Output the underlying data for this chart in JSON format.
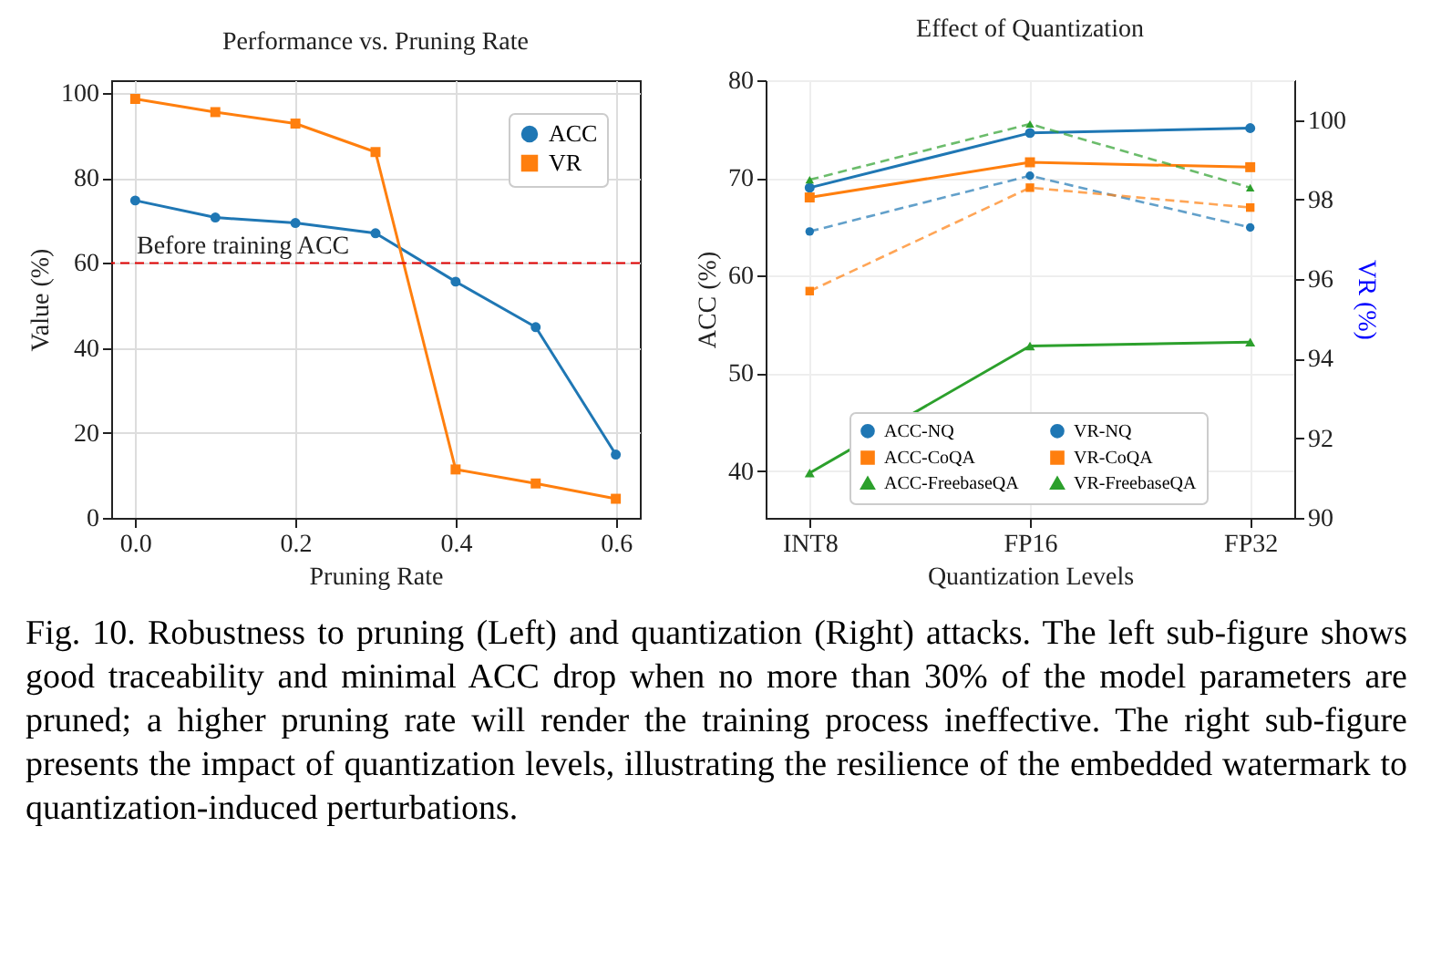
{
  "chart_data": [
    {
      "type": "line",
      "title": "Performance vs. Pruning Rate",
      "xlabel": "Pruning Rate",
      "ylabel": "Value (%)",
      "x": [
        0,
        0.1,
        0.2,
        0.3,
        0.4,
        0.5,
        0.6
      ],
      "series": [
        {
          "name": "ACC",
          "color": "#1f77b4",
          "marker": "circle",
          "line_style": "solid",
          "values": [
            74.7,
            70.7,
            69.4,
            67.0,
            55.6,
            44.9,
            14.9
          ]
        },
        {
          "name": "VR",
          "color": "#ff7f0e",
          "marker": "square",
          "line_style": "solid",
          "values": [
            98.6,
            95.5,
            92.8,
            86.1,
            11.4,
            8.1,
            4.5
          ]
        }
      ],
      "xlim": [
        -0.03,
        0.63
      ],
      "xticks": [
        {
          "value": 0,
          "label": "0.0"
        },
        {
          "value": 0.2,
          "label": "0.2"
        },
        {
          "value": 0.4,
          "label": "0.4"
        },
        {
          "value": 0.6,
          "label": "0.6"
        }
      ],
      "ylim": [
        0,
        103
      ],
      "yticks": [
        0,
        20,
        40,
        60,
        80,
        100
      ],
      "ref_lines": [
        {
          "axis": "y",
          "value": 60,
          "label": "Before training ACC",
          "color": "#e00000",
          "line_style": "dashed"
        }
      ],
      "grid": true,
      "legend": "top right",
      "annotations": [
        "Fig. 10.  Robustness to pruning (Left) and quantization (Right) attacks. The left sub-figure shows good traceability and minimal ACC drop when no more than 30% of the model parameters are pruned; a higher pruning rate will render the training process ineffective. The right sub-figure presents the impact of quantization levels, illustrating the resilience of the embedded watermark to quantization-induced perturbations."
      ]
    },
    {
      "type": "line",
      "title": "Effect of Quantization",
      "xlabel": "Quantization Levels",
      "ylabel": "ACC (%)",
      "y2label": "VR (%)",
      "categories": [
        "INT8",
        "FP16",
        "FP32"
      ],
      "series": [
        {
          "name": "ACC-NQ",
          "color": "#1f77b4",
          "marker": "circle",
          "line_style": "solid",
          "values": [
            69.0,
            74.6,
            75.1
          ]
        },
        {
          "name": "ACC-CoQA",
          "color": "#ff7f0e",
          "marker": "square",
          "line_style": "solid",
          "values": [
            68.0,
            71.6,
            71.1
          ]
        },
        {
          "name": "ACC-FreebaseQA",
          "color": "#2ca02c",
          "marker": "triangle",
          "line_style": "solid",
          "values": [
            39.8,
            52.8,
            53.2
          ]
        },
        {
          "name": "VR-NQ",
          "color": "#1f77b4",
          "marker": "circle",
          "line_style": "dashed",
          "axis": "y2",
          "values": [
            97.2,
            98.6,
            97.3
          ]
        },
        {
          "name": "VR-CoQA",
          "color": "#ff7f0e",
          "marker": "square",
          "line_style": "dashed",
          "axis": "y2",
          "values": [
            95.7,
            98.3,
            97.8
          ]
        },
        {
          "name": "VR-FreebaseQA",
          "color": "#2ca02c",
          "marker": "triangle",
          "line_style": "dashed",
          "axis": "y2",
          "values": [
            98.5,
            99.9,
            98.3
          ]
        }
      ],
      "ylim": [
        35.2,
        80
      ],
      "yticks": [
        40,
        50,
        60,
        70,
        80
      ],
      "y2lim": [
        90,
        101
      ],
      "y2ticks": [
        90,
        92,
        94,
        96,
        98,
        100
      ],
      "grid": true,
      "legend": "bottom"
    }
  ]
}
